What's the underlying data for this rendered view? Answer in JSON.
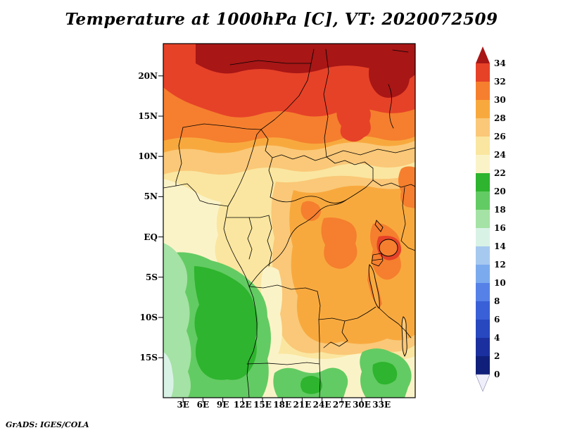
{
  "title": "Temperature at 1000hPa [C], VT: 2020072509",
  "footer": "GrADS: IGES/COLA",
  "axes": {
    "lat_labels": [
      "20N",
      "15N",
      "10N",
      "5N",
      "EQ",
      "5S",
      "10S",
      "15S"
    ],
    "lon_labels": [
      "3E",
      "6E",
      "9E",
      "12E",
      "15E",
      "18E",
      "21E",
      "24E",
      "27E",
      "30E",
      "33E"
    ]
  },
  "colorbar": {
    "tick_labels": [
      "34",
      "32",
      "30",
      "28",
      "26",
      "24",
      "22",
      "20",
      "18",
      "16",
      "14",
      "12",
      "10",
      "8",
      "6",
      "4",
      "2",
      "0"
    ],
    "levels": [
      {
        "range": "above-34",
        "color": "#a81616"
      },
      {
        "range": "32-34",
        "color": "#e64228"
      },
      {
        "range": "30-32",
        "color": "#f57f2e"
      },
      {
        "range": "28-30",
        "color": "#f8a93e"
      },
      {
        "range": "26-28",
        "color": "#fac878"
      },
      {
        "range": "24-26",
        "color": "#fae6a0"
      },
      {
        "range": "22-24",
        "color": "#fbf3c8"
      },
      {
        "range": "20-22",
        "color": "#2eb42e"
      },
      {
        "range": "18-20",
        "color": "#63cb63"
      },
      {
        "range": "16-18",
        "color": "#a5e2a5"
      },
      {
        "range": "14-16",
        "color": "#d9f2e6"
      },
      {
        "range": "12-14",
        "color": "#a6c9f0"
      },
      {
        "range": "10-12",
        "color": "#7babee"
      },
      {
        "range": "8-10",
        "color": "#5682e8"
      },
      {
        "range": "6-8",
        "color": "#3a60d8"
      },
      {
        "range": "4-6",
        "color": "#2848c0"
      },
      {
        "range": "2-4",
        "color": "#1b309e"
      },
      {
        "range": "0-2",
        "color": "#101f7a"
      },
      {
        "range": "below-0",
        "color": "#efeffc"
      }
    ]
  },
  "chart_data": {
    "type": "heatmap",
    "title": "Temperature at 1000hPa [C], VT: 2020072509",
    "variable": "Temperature",
    "level_hPa": 1000,
    "units": "C",
    "valid_time": "2020072509",
    "x_tick_labels": [
      "3E",
      "6E",
      "9E",
      "12E",
      "15E",
      "18E",
      "21E",
      "24E",
      "27E",
      "30E",
      "33E"
    ],
    "y_tick_labels": [
      "20N",
      "15N",
      "10N",
      "5N",
      "EQ",
      "5S",
      "10S",
      "15S"
    ],
    "contour_interval": 2,
    "contour_levels": [
      0,
      2,
      4,
      6,
      8,
      10,
      12,
      14,
      16,
      18,
      20,
      22,
      24,
      26,
      28,
      30,
      32,
      34
    ],
    "legend_position": "right",
    "grid": false,
    "approx_grid": {
      "lon_deg_east": [
        2,
        6,
        10,
        14,
        18,
        22,
        26,
        30,
        34
      ],
      "lat_deg_north": [
        22,
        17,
        12,
        7,
        2,
        -3,
        -8,
        -13,
        -18
      ],
      "values_C": [
        [
          31,
          33,
          33,
          34,
          34,
          34,
          34,
          34,
          34
        ],
        [
          30,
          31,
          32,
          32,
          33,
          33,
          34,
          34,
          34
        ],
        [
          27,
          28,
          28,
          29,
          29,
          30,
          31,
          32,
          32
        ],
        [
          25,
          26,
          26,
          27,
          28,
          28,
          28,
          29,
          29
        ],
        [
          23,
          23,
          24,
          26,
          27,
          28,
          28,
          30,
          29
        ],
        [
          22,
          21,
          23,
          25,
          27,
          28,
          29,
          30,
          28
        ],
        [
          19,
          20,
          21,
          24,
          26,
          27,
          28,
          28,
          27
        ],
        [
          18,
          19,
          20,
          23,
          24,
          25,
          26,
          24,
          22
        ],
        [
          16,
          18,
          21,
          23,
          24,
          23,
          22,
          21,
          20
        ]
      ]
    }
  }
}
